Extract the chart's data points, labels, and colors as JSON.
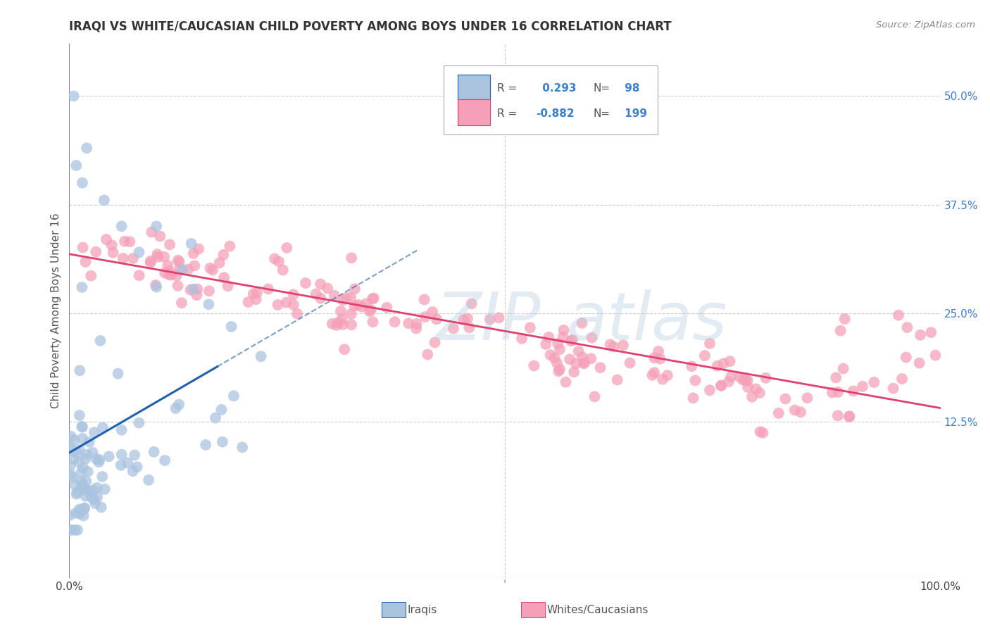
{
  "title": "IRAQI VS WHITE/CAUCASIAN CHILD POVERTY AMONG BOYS UNDER 16 CORRELATION CHART",
  "source": "Source: ZipAtlas.com",
  "ylabel": "Child Poverty Among Boys Under 16",
  "legend_iraqis": "Iraqis",
  "legend_whites": "Whites/Caucasians",
  "iraqis_R": 0.293,
  "iraqis_N": 98,
  "whites_R": -0.882,
  "whites_N": 199,
  "xlim": [
    0,
    1.0
  ],
  "ylim": [
    -0.055,
    0.56
  ],
  "xticks": [
    0.0,
    0.25,
    0.5,
    0.75,
    1.0
  ],
  "xticklabels": [
    "0.0%",
    "",
    "",
    "",
    "100.0%"
  ],
  "yticks": [
    0.125,
    0.25,
    0.375,
    0.5
  ],
  "yticklabels": [
    "12.5%",
    "25.0%",
    "37.5%",
    "50.0%"
  ],
  "color_iraqis": "#aac4e0",
  "color_whites": "#f5a0b8",
  "color_iraqis_line": "#2060b0",
  "color_whites_line": "#e04070",
  "background_color": "#ffffff",
  "grid_color": "#cccccc"
}
